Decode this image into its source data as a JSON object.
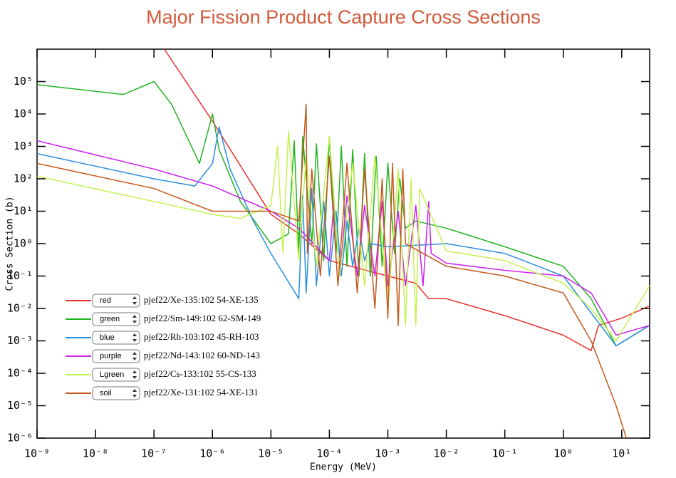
{
  "chart_data": {
    "type": "line",
    "title": "Major Fission Product Capture Cross Sections",
    "x_label": "Energy (MeV)",
    "y_label": "Cross Section (b)",
    "log_x": true,
    "log_y": true,
    "legend": "lower left",
    "xlim": [
      1e-09,
      30
    ],
    "ylim": [
      1e-06,
      1000000
    ],
    "xticks": [
      {
        "value": 1e-09,
        "label": "10⁻⁹"
      },
      {
        "value": 1e-08,
        "label": "10⁻⁸"
      },
      {
        "value": 1e-07,
        "label": "10⁻⁷"
      },
      {
        "value": 1e-06,
        "label": "10⁻⁶"
      },
      {
        "value": 1e-05,
        "label": "10⁻⁵"
      },
      {
        "value": 0.0001,
        "label": "10⁻⁴"
      },
      {
        "value": 0.001,
        "label": "10⁻³"
      },
      {
        "value": 0.01,
        "label": "10⁻²"
      },
      {
        "value": 0.1,
        "label": "10⁻¹"
      },
      {
        "value": 1,
        "label": "10⁰"
      },
      {
        "value": 10,
        "label": "10¹"
      }
    ],
    "yticks": [
      {
        "value": 1e-06,
        "label": "10⁻⁶"
      },
      {
        "value": 1e-05,
        "label": "10⁻⁵"
      },
      {
        "value": 0.0001,
        "label": "10⁻⁴"
      },
      {
        "value": 0.001,
        "label": "10⁻³"
      },
      {
        "value": 0.01,
        "label": "10⁻²"
      },
      {
        "value": 0.1,
        "label": "10⁻¹"
      },
      {
        "value": 1,
        "label": "10⁰"
      },
      {
        "value": 10,
        "label": "10¹"
      },
      {
        "value": 100,
        "label": "10²"
      },
      {
        "value": 1000,
        "label": "10³"
      },
      {
        "value": 10000,
        "label": "10⁴"
      },
      {
        "value": 100000,
        "label": "10⁵"
      }
    ],
    "series": [
      {
        "name": "pjef22/Xe-135:102  54-XE-135",
        "color_name": "red",
        "color": "#e8302a",
        "x": [
          1.5e-07,
          1e-06,
          1e-05,
          3e-05,
          0.0001,
          0.001,
          0.003,
          0.005,
          0.01,
          0.1,
          1,
          3,
          4,
          10,
          30
        ],
        "values": [
          1000000,
          6000,
          8,
          2,
          0.3,
          0.1,
          0.06,
          0.02,
          0.02,
          0.006,
          0.0015,
          0.0005,
          0.003,
          0.005,
          0.012
        ]
      },
      {
        "name": "pjef22/Sm-149:102  62-SM-149",
        "color_name": "green",
        "color": "#22b422",
        "x": [
          1e-09,
          3e-08,
          1e-07,
          2e-07,
          6e-07,
          1e-06,
          1.3e-06,
          3e-06,
          1e-05,
          2e-05,
          2.5e-05,
          3e-05,
          3.5e-05,
          5e-05,
          6e-05,
          8e-05,
          0.0001,
          0.00013,
          0.00016,
          0.0002,
          0.00025,
          0.00032,
          0.0004,
          0.0005,
          0.00063,
          0.0008,
          0.001,
          0.0013,
          0.0016,
          0.002,
          0.003,
          0.01,
          0.1,
          1,
          3,
          8,
          30
        ],
        "values": [
          80000,
          40000,
          100000,
          20000,
          300,
          10000,
          800,
          20,
          1,
          2,
          1500,
          0.5,
          2000,
          1,
          1200,
          0.3,
          2000,
          0.5,
          1000,
          0.2,
          800,
          0.1,
          600,
          0.1,
          500,
          0.2,
          300,
          0.5,
          100,
          3,
          5,
          3,
          0.8,
          0.2,
          0.02,
          0.0007,
          0.003
        ]
      },
      {
        "name": "pjef22/Rh-103:102  45-RH-103",
        "color_name": "blue",
        "color": "#2a8fe0",
        "x": [
          1e-09,
          1e-07,
          5e-07,
          1e-06,
          1.3e-06,
          2e-06,
          5e-06,
          1e-05,
          3e-05,
          3.5e-05,
          4e-05,
          5e-05,
          6e-05,
          8e-05,
          0.0001,
          0.00013,
          0.00016,
          0.0002,
          0.00025,
          0.00032,
          0.0004,
          0.0005,
          0.001,
          0.01,
          0.1,
          1,
          8,
          30
        ],
        "values": [
          600,
          100,
          60,
          300,
          4000,
          200,
          5,
          0.5,
          0.02,
          30,
          0.03,
          50,
          0.05,
          20,
          0.1,
          10,
          0.1,
          5,
          0.2,
          3,
          0.3,
          1,
          0.8,
          1,
          0.5,
          0.1,
          0.0007,
          0.003
        ]
      },
      {
        "name": "pjef22/Nd-143:102  60-ND-143",
        "color_name": "purple",
        "color": "#cc22ee",
        "x": [
          1e-09,
          1e-07,
          1e-06,
          1e-05,
          3e-05,
          0.0001,
          0.00012,
          0.00015,
          0.0002,
          0.0003,
          0.0004,
          0.0006,
          0.0008,
          0.001,
          0.0015,
          0.002,
          0.003,
          0.004,
          0.005,
          0.0055,
          0.01,
          0.1,
          1,
          3,
          8,
          30
        ],
        "values": [
          1500,
          200,
          60,
          10,
          3,
          0.3,
          20,
          0.1,
          30,
          0.1,
          15,
          0.1,
          20,
          0.05,
          10,
          0.05,
          15,
          0.05,
          20,
          0.5,
          0.25,
          0.15,
          0.1,
          0.03,
          0.0015,
          0.003
        ]
      },
      {
        "name": "pjef22/Cs-133:102  55-CS-133",
        "color_name": "Lgreen",
        "color": "#c4f250",
        "x": [
          1e-09,
          1e-07,
          1e-06,
          3e-06,
          1e-05,
          1.3e-05,
          1.6e-05,
          2e-05,
          3e-05,
          4e-05,
          6e-05,
          0.0001,
          0.00015,
          0.00025,
          0.0004,
          0.0006,
          0.001,
          0.0015,
          0.002,
          0.0025,
          0.003,
          0.0035,
          0.01,
          0.1,
          1,
          3,
          8,
          30
        ],
        "values": [
          120,
          20,
          8,
          6,
          15,
          1000,
          0.5,
          3000,
          0.3,
          500,
          0.2,
          2000,
          0.1,
          300,
          0.05,
          500,
          0.01,
          200,
          0.003,
          100,
          0.003,
          50,
          0.6,
          0.3,
          0.06,
          0.01,
          0.001,
          0.05
        ]
      },
      {
        "name": "pjef22/Xe-131:102  54-XE-131",
        "color_name": "soil",
        "color": "#c4581a",
        "x": [
          1e-09,
          1e-07,
          1e-06,
          1e-05,
          3e-05,
          4e-05,
          4.2e-05,
          5e-05,
          7e-05,
          0.0001,
          0.00014,
          0.0002,
          0.0003,
          0.0004,
          0.0006,
          0.0008,
          0.001,
          0.0012,
          0.0015,
          0.0018,
          0.002,
          0.01,
          0.1,
          1,
          3,
          8,
          12
        ],
        "values": [
          300,
          50,
          10,
          10,
          5,
          20000,
          0.5,
          200,
          0.1,
          500,
          0.05,
          300,
          0.03,
          200,
          0.01,
          100,
          0.005,
          300,
          0.003,
          200,
          1,
          0.2,
          0.1,
          0.03,
          0.001,
          1e-05,
          1e-06
        ]
      }
    ]
  }
}
